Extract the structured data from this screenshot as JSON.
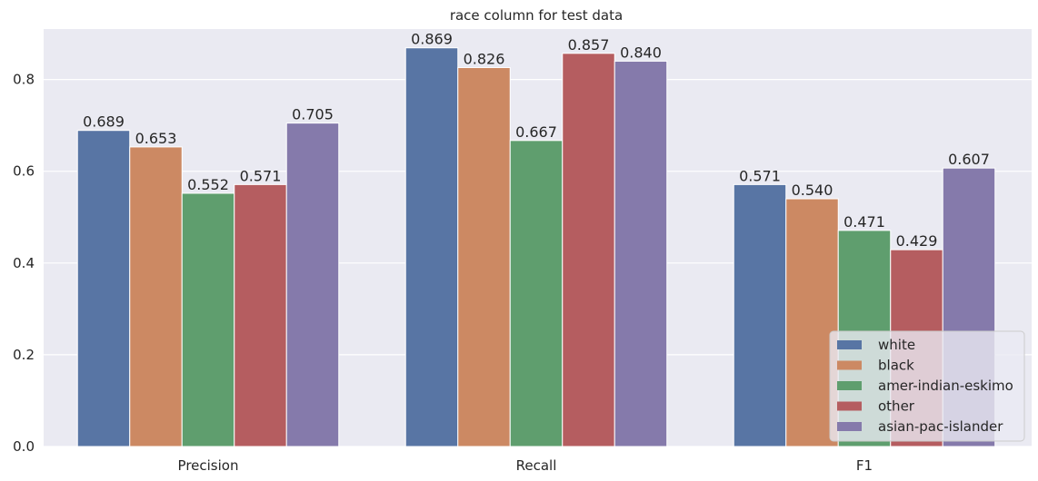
{
  "chart_data": {
    "type": "bar",
    "title": "race column for test data",
    "xlabel": "",
    "ylabel": "",
    "categories": [
      "Precision",
      "Recall",
      "F1"
    ],
    "ylim": [
      0,
      0.91
    ],
    "yticks": [
      0.0,
      0.2,
      0.4,
      0.6,
      0.8
    ],
    "ytick_labels": [
      "0.0",
      "0.2",
      "0.4",
      "0.6",
      "0.8"
    ],
    "grid": true,
    "legend_position": "bottom-right",
    "series": [
      {
        "name": "white",
        "color": "#5875a4",
        "values": [
          0.689,
          0.869,
          0.571
        ],
        "labels": [
          "0.689",
          "0.869",
          "0.571"
        ]
      },
      {
        "name": "black",
        "color": "#cc8963",
        "values": [
          0.653,
          0.826,
          0.54
        ],
        "labels": [
          "0.653",
          "0.826",
          "0.540"
        ]
      },
      {
        "name": "amer-indian-eskimo",
        "color": "#5f9e6e",
        "values": [
          0.552,
          0.667,
          0.471
        ],
        "labels": [
          "0.552",
          "0.667",
          "0.471"
        ]
      },
      {
        "name": "other",
        "color": "#b55d60",
        "values": [
          0.571,
          0.857,
          0.429
        ],
        "labels": [
          "0.571",
          "0.857",
          "0.429"
        ]
      },
      {
        "name": "asian-pac-islander",
        "color": "#857aab",
        "values": [
          0.705,
          0.84,
          0.607
        ],
        "labels": [
          "0.705",
          "0.840",
          "0.607"
        ]
      }
    ]
  }
}
